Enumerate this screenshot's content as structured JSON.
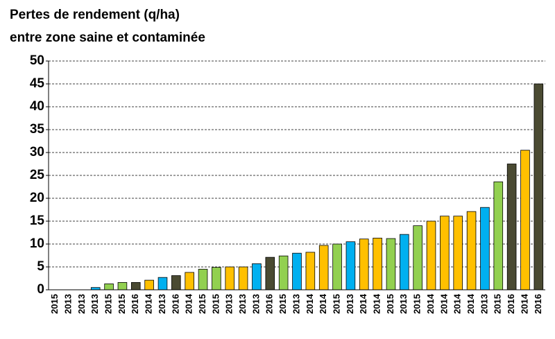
{
  "chart_data": {
    "type": "bar",
    "title": [
      "Pertes de rendement (q/ha)",
      "entre zone saine et contaminée"
    ],
    "categories": [
      "2015",
      "2013",
      "2013",
      "2013",
      "2015",
      "2015",
      "2016",
      "2014",
      "2013",
      "2016",
      "2014",
      "2015",
      "2015",
      "2013",
      "2013",
      "2013",
      "2016",
      "2015",
      "2013",
      "2014",
      "2014",
      "2015",
      "2013",
      "2014",
      "2014",
      "2015",
      "2013",
      "2015",
      "2014",
      "2014",
      "2014",
      "2014",
      "2013",
      "2015",
      "2016",
      "2014",
      "2016"
    ],
    "values": [
      0,
      0,
      0,
      0.5,
      1.3,
      1.6,
      1.6,
      2.1,
      2.7,
      3.1,
      3.8,
      4.5,
      4.9,
      5.0,
      5.0,
      5.7,
      7.1,
      7.4,
      8.0,
      8.2,
      9.7,
      10.0,
      10.5,
      11.1,
      11.3,
      11.2,
      12.1,
      14.0,
      15.0,
      16.1,
      16.1,
      17.1,
      18.0,
      23.6,
      27.5,
      30.5,
      45
    ],
    "colors": [
      "#92d050",
      "#00b0f0",
      "#00b0f0",
      "#00b0f0",
      "#92d050",
      "#92d050",
      "#4a4a32",
      "#ffc000",
      "#00b0f0",
      "#4a4a32",
      "#ffc000",
      "#92d050",
      "#92d050",
      "#ffc000",
      "#ffc000",
      "#00b0f0",
      "#4a4a32",
      "#92d050",
      "#00b0f0",
      "#ffc000",
      "#ffc000",
      "#92d050",
      "#00b0f0",
      "#ffc000",
      "#ffc000",
      "#92d050",
      "#00b0f0",
      "#92d050",
      "#ffc000",
      "#ffc000",
      "#ffc000",
      "#ffc000",
      "#00b0f0",
      "#92d050",
      "#4a4a32",
      "#ffc000",
      "#4a4a32"
    ],
    "ylim": [
      0,
      50
    ],
    "yticks": [
      0,
      5,
      10,
      15,
      20,
      25,
      30,
      35,
      40,
      45,
      50
    ],
    "grid": true
  }
}
